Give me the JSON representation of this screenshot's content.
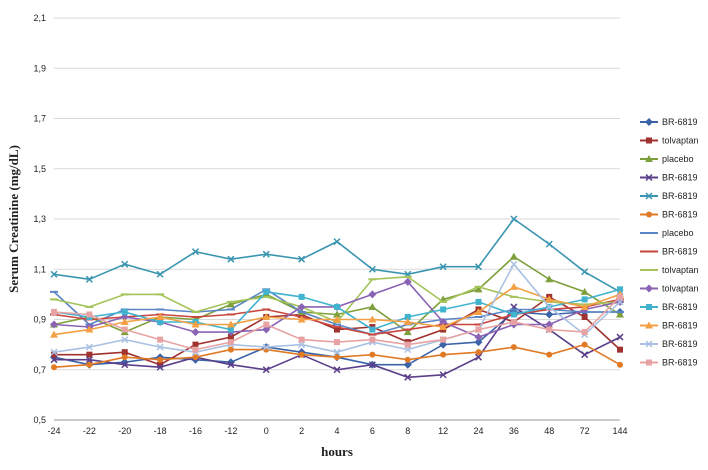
{
  "chart_data": {
    "type": "line",
    "title": "",
    "xlabel": "hours",
    "ylabel": "Serum Creatinine  (mg/dL)",
    "categories": [
      "-24",
      "-22",
      "-20",
      "-18",
      "-16",
      "-12",
      "0",
      "2",
      "4",
      "6",
      "8",
      "12",
      "24",
      "36",
      "48",
      "72",
      "144"
    ],
    "yticks": [
      "0,5",
      "0,7",
      "0,9",
      "1,1",
      "1,3",
      "1,5",
      "1,7",
      "1,9",
      "2,1"
    ],
    "ylim": [
      0.5,
      2.1
    ],
    "grid": "horizontal",
    "legend_position": "right",
    "series": [
      {
        "name": "BR-6819",
        "color": "#3a63a8",
        "marker": "diamond",
        "values": [
          0.75,
          0.72,
          0.73,
          0.75,
          0.74,
          0.73,
          0.79,
          0.77,
          0.75,
          0.72,
          0.72,
          0.8,
          0.81,
          0.93,
          0.92,
          0.93,
          0.93
        ]
      },
      {
        "name": "tolvaptan",
        "color": "#a0322f",
        "marker": "square",
        "values": [
          0.76,
          0.76,
          0.77,
          0.72,
          0.8,
          0.83,
          0.91,
          0.92,
          0.86,
          0.87,
          0.81,
          0.86,
          0.94,
          0.89,
          0.99,
          0.91,
          0.78
        ]
      },
      {
        "name": "placebo",
        "color": "#7ea03c",
        "marker": "triangle",
        "values": [
          0.88,
          0.91,
          0.85,
          0.91,
          0.9,
          0.96,
          1.0,
          0.93,
          0.92,
          0.95,
          0.85,
          0.98,
          1.02,
          1.15,
          1.06,
          1.01,
          0.92
        ]
      },
      {
        "name": "BR-6819",
        "color": "#5b3f8a",
        "marker": "x",
        "values": [
          0.74,
          0.74,
          0.72,
          0.71,
          0.75,
          0.72,
          0.7,
          0.76,
          0.7,
          0.72,
          0.67,
          0.68,
          0.75,
          0.95,
          0.86,
          0.76,
          0.83
        ]
      },
      {
        "name": "BR-6819",
        "color": "#3a95b0",
        "marker": "x",
        "values": [
          1.08,
          1.06,
          1.12,
          1.08,
          1.17,
          1.14,
          1.16,
          1.14,
          1.21,
          1.1,
          1.08,
          1.11,
          1.11,
          1.3,
          1.2,
          1.09,
          1.01
        ]
      },
      {
        "name": "BR-6819",
        "color": "#e07a24",
        "marker": "circle",
        "values": [
          0.71,
          0.72,
          0.75,
          0.74,
          0.75,
          0.78,
          0.78,
          0.76,
          0.75,
          0.76,
          0.74,
          0.76,
          0.77,
          0.79,
          0.76,
          0.8,
          0.72
        ]
      },
      {
        "name": "placebo",
        "color": "#5a86c8",
        "marker": "dash",
        "values": [
          1.01,
          0.88,
          0.94,
          0.94,
          0.93,
          0.94,
          1.02,
          0.93,
          0.88,
          0.84,
          0.88,
          0.9,
          0.91,
          0.94,
          0.94,
          0.93,
          0.93
        ]
      },
      {
        "name": "BR-6819",
        "color": "#c9463f",
        "marker": "dash",
        "values": [
          0.92,
          0.9,
          0.91,
          0.92,
          0.91,
          0.92,
          0.94,
          0.91,
          0.87,
          0.84,
          0.86,
          0.88,
          0.88,
          0.92,
          0.94,
          0.95,
          0.98
        ]
      },
      {
        "name": "tolvaptan",
        "color": "#a4c45a",
        "marker": "dash",
        "values": [
          0.98,
          0.95,
          1.0,
          1.0,
          0.93,
          0.97,
          0.99,
          0.95,
          0.89,
          1.06,
          1.07,
          0.97,
          1.03,
          0.99,
          0.97,
          0.96,
          0.97
        ]
      },
      {
        "name": "tolvaptan",
        "color": "#8a63b5",
        "marker": "diamond",
        "values": [
          0.88,
          0.87,
          0.91,
          0.89,
          0.85,
          0.85,
          0.86,
          0.95,
          0.95,
          1.0,
          1.05,
          0.89,
          0.83,
          0.88,
          0.88,
          0.94,
          0.97
        ]
      },
      {
        "name": "BR-6819",
        "color": "#41b3cf",
        "marker": "square",
        "values": [
          0.93,
          0.91,
          0.93,
          0.89,
          0.89,
          0.86,
          1.01,
          0.99,
          0.95,
          0.86,
          0.91,
          0.94,
          0.97,
          0.92,
          0.95,
          0.98,
          1.02
        ]
      },
      {
        "name": "BR-6819",
        "color": "#f2a043",
        "marker": "triangle",
        "values": [
          0.84,
          0.86,
          0.89,
          0.91,
          0.88,
          0.88,
          0.91,
          0.9,
          0.9,
          0.9,
          0.89,
          0.87,
          0.93,
          1.03,
          0.98,
          0.95,
          1.0
        ]
      },
      {
        "name": "BR-6819",
        "color": "#a9c1e3",
        "marker": "x",
        "values": [
          0.77,
          0.79,
          0.82,
          0.79,
          0.77,
          0.8,
          0.79,
          0.8,
          0.77,
          0.81,
          0.78,
          0.82,
          0.86,
          1.12,
          0.95,
          0.84,
          0.97
        ]
      },
      {
        "name": "BR-6819",
        "color": "#e7a3a3",
        "marker": "square",
        "values": [
          0.93,
          0.92,
          0.86,
          0.82,
          0.78,
          0.81,
          0.88,
          0.82,
          0.81,
          0.82,
          0.8,
          0.82,
          0.86,
          0.89,
          0.86,
          0.85,
          0.99
        ]
      }
    ]
  }
}
